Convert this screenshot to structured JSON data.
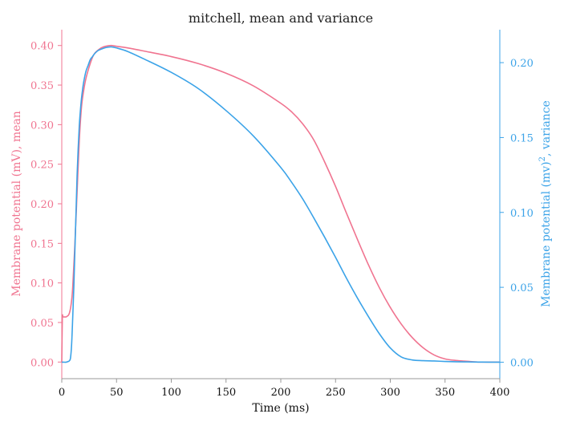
{
  "chart_data": {
    "type": "line",
    "title": "mitchell, mean and variance",
    "xlabel": "Time (ms)",
    "ylabel_left": "Membrane potential (mV), mean",
    "ylabel_right_main": "Membrane potential (mv)",
    "ylabel_right_sup": "2",
    "ylabel_right_tail": ", variance",
    "xlim": [
      0,
      400
    ],
    "ylim_left": [
      -0.021,
      0.42
    ],
    "ylim_right": [
      -0.011,
      0.222
    ],
    "x_ticks": [
      0,
      50,
      100,
      150,
      200,
      250,
      300,
      350,
      400
    ],
    "x_tick_labels": [
      "0",
      "50",
      "100",
      "150",
      "200",
      "250",
      "300",
      "350",
      "400"
    ],
    "y_left_ticks": [
      0.0,
      0.05,
      0.1,
      0.15,
      0.2,
      0.25,
      0.3,
      0.35,
      0.4
    ],
    "y_left_tick_labels": [
      "0.00",
      "0.05",
      "0.10",
      "0.15",
      "0.20",
      "0.25",
      "0.30",
      "0.35",
      "0.40"
    ],
    "y_right_ticks": [
      0.0,
      0.05,
      0.1,
      0.15,
      0.2
    ],
    "y_right_tick_labels": [
      "0.00",
      "0.05",
      "0.10",
      "0.15",
      "0.20"
    ],
    "grid": false,
    "colors": {
      "mean": "#f07490",
      "variance": "#3ba3e8",
      "bottom_axis": "#999999"
    },
    "series": [
      {
        "axis": "left",
        "x": [
          0,
          0.5,
          1,
          2,
          3,
          4,
          5,
          6,
          7,
          8,
          9,
          10,
          12,
          14,
          16,
          18,
          20,
          22,
          25,
          28,
          30,
          33,
          36,
          40,
          45,
          50,
          60,
          75,
          100,
          125,
          150,
          175,
          200,
          210,
          220,
          230,
          240,
          250,
          260,
          270,
          280,
          290,
          300,
          310,
          320,
          330,
          340,
          350,
          360,
          370,
          380,
          390,
          400
        ],
        "values": [
          0.0,
          0.055,
          0.057,
          0.057,
          0.057,
          0.057,
          0.058,
          0.059,
          0.062,
          0.068,
          0.078,
          0.095,
          0.15,
          0.215,
          0.28,
          0.322,
          0.343,
          0.358,
          0.373,
          0.385,
          0.39,
          0.394,
          0.397,
          0.399,
          0.4,
          0.399,
          0.397,
          0.393,
          0.386,
          0.377,
          0.365,
          0.349,
          0.327,
          0.316,
          0.301,
          0.281,
          0.253,
          0.222,
          0.188,
          0.155,
          0.123,
          0.094,
          0.069,
          0.048,
          0.031,
          0.018,
          0.009,
          0.004,
          0.002,
          0.001,
          0.0,
          0.0,
          0.0
        ]
      },
      {
        "axis": "right",
        "x": [
          0,
          2,
          4,
          6,
          7,
          8,
          9,
          10,
          11,
          12,
          13,
          14,
          15,
          16,
          17,
          18,
          19,
          20,
          22,
          24,
          26,
          28,
          30,
          33,
          36,
          40,
          45,
          50,
          60,
          75,
          100,
          125,
          150,
          175,
          200,
          210,
          220,
          230,
          240,
          250,
          260,
          270,
          280,
          290,
          300,
          310,
          320,
          330,
          340,
          350,
          360,
          370,
          380,
          390,
          400
        ],
        "values": [
          0.0,
          0.0,
          0.0,
          0.0005,
          0.001,
          0.003,
          0.012,
          0.03,
          0.05,
          0.075,
          0.1,
          0.125,
          0.143,
          0.158,
          0.168,
          0.176,
          0.182,
          0.187,
          0.194,
          0.198,
          0.202,
          0.204,
          0.206,
          0.208,
          0.209,
          0.21,
          0.2105,
          0.2098,
          0.2075,
          0.2025,
          0.1935,
          0.1825,
          0.168,
          0.151,
          0.13,
          0.12,
          0.109,
          0.0965,
          0.0835,
          0.07,
          0.056,
          0.0428,
          0.0305,
          0.019,
          0.0095,
          0.0035,
          0.0015,
          0.001,
          0.0008,
          0.0005,
          0.0003,
          0.0002,
          0.0001,
          0.0,
          0.0
        ]
      }
    ]
  }
}
